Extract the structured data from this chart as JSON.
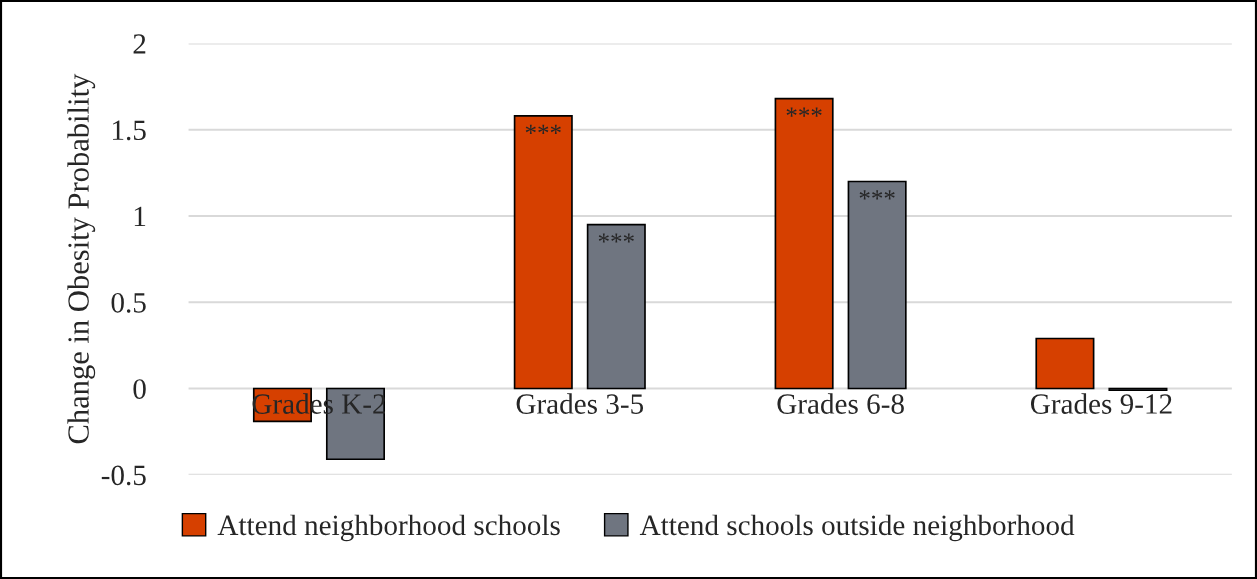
{
  "chart_data": {
    "type": "bar",
    "ylabel": "Change in Obesity Probability",
    "categories": [
      "Grades K-2",
      "Grades 3-5",
      "Grades 6-8",
      "Grades 9-12"
    ],
    "series": [
      {
        "name": "Attend neighborhood schools",
        "color": "#d64000",
        "values": [
          -0.19,
          1.58,
          1.68,
          0.29
        ],
        "value_labels": [
          null,
          "***",
          "***",
          null
        ]
      },
      {
        "name": "Attend schools outside neighborhood",
        "color": "#6f7580",
        "values": [
          -0.41,
          0.95,
          1.2,
          -0.01
        ],
        "value_labels": [
          null,
          "***",
          "***",
          null
        ]
      }
    ],
    "ylim": [
      -0.5,
      2
    ],
    "yticks": [
      {
        "value": -0.5,
        "label": "-0.5"
      },
      0,
      0.5,
      1,
      1.5,
      2
    ],
    "grid": "y",
    "legend": "bottom"
  }
}
